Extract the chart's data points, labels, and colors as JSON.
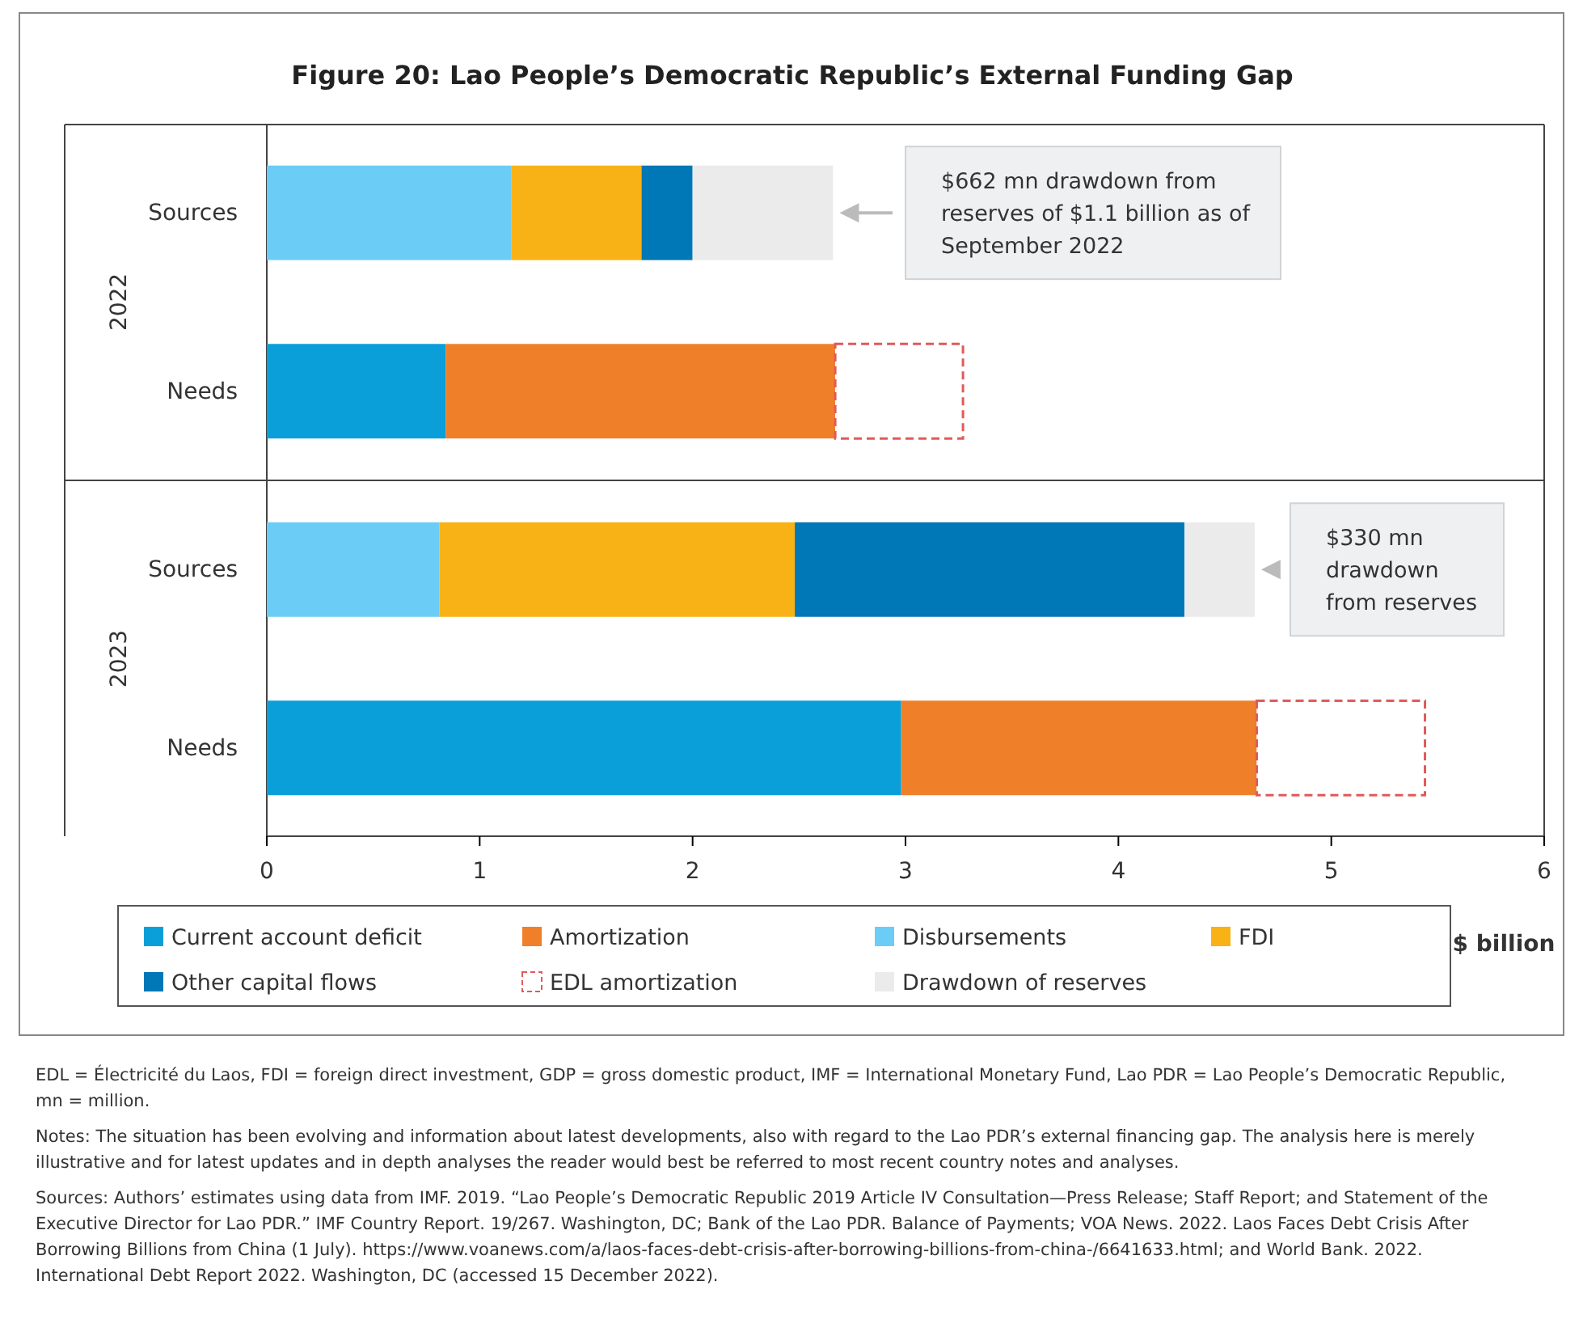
{
  "chart_data": {
    "type": "bar",
    "orientation": "horizontal",
    "stacked": true,
    "title": "Figure 20: Lao People’s Democratic Republic’s External Funding Gap",
    "xlabel": "$ billion",
    "categories": [
      "Sources",
      "Needs",
      "Sources",
      "Needs"
    ],
    "xlim": [
      0,
      6
    ],
    "xticks": [
      0,
      1,
      2,
      3,
      4,
      5,
      6
    ],
    "grid": false,
    "legend": "bottom",
    "series": [
      {
        "name": "Current account deficit",
        "color": "#0a9fd8",
        "values": [
          null,
          0.84,
          null,
          2.98
        ]
      },
      {
        "name": "Amortization",
        "color": "#f07f2a",
        "values": [
          null,
          1.83,
          null,
          1.67
        ]
      },
      {
        "name": "Disbursements",
        "color": "#6bcdf5",
        "values": [
          1.15,
          null,
          0.81,
          null
        ]
      },
      {
        "name": "FDI",
        "color": "#f8b216",
        "values": [
          0.61,
          null,
          1.67,
          null
        ]
      },
      {
        "name": "Other capital flows",
        "color": "#0077b6",
        "values": [
          0.24,
          null,
          1.83,
          null
        ]
      },
      {
        "name": "EDL amortization",
        "color": "#e05a5a",
        "line_style": "dashed",
        "values": [
          null,
          0.6,
          null,
          0.79
        ]
      },
      {
        "name": "Drawdown of reserves",
        "color": "#ebebeb",
        "values": [
          0.66,
          null,
          0.33,
          null
        ]
      }
    ],
    "annotations": [
      "2022",
      "2023",
      "$662 mn drawdown from reserves of $1.1 billion as of September 2022",
      "$330 mn drawdown from reserves",
      "EDL = Électricité du Laos, FDI = foreign direct investment, GDP = gross domestic product, IMF = International Monetary Fund, Lao PDR = Lao People’s Democratic Republic, mn = million.",
      "Notes: The situation has been evolving and information about latest developments, also with regard to the Lao PDR’s external financing gap. The analysis here is merely illustrative and for latest updates and in depth analyses the reader would best be referred to most recent country notes and analyses.",
      "Sources: Authors’ estimates using data from IMF. 2019. “Lao People’s Democratic Republic 2019 Article IV Consultation—Press Release; Staff Report; and Statement of the Executive Director for Lao PDR.” IMF Country Report. 19/267. Washington, DC; Bank of the Lao PDR. Balance of Payments; VOA News. 2022. Laos Faces Debt Crisis After Borrowing Billions from China (1 July). https://www.voanews.com/a/laos-faces-debt-crisis-after-borrowing-billions-from-china-/6641633.html; and World Bank. 2022. International Debt Report 2022. Washington, DC (accessed 15 December 2022)."
    ]
  }
}
